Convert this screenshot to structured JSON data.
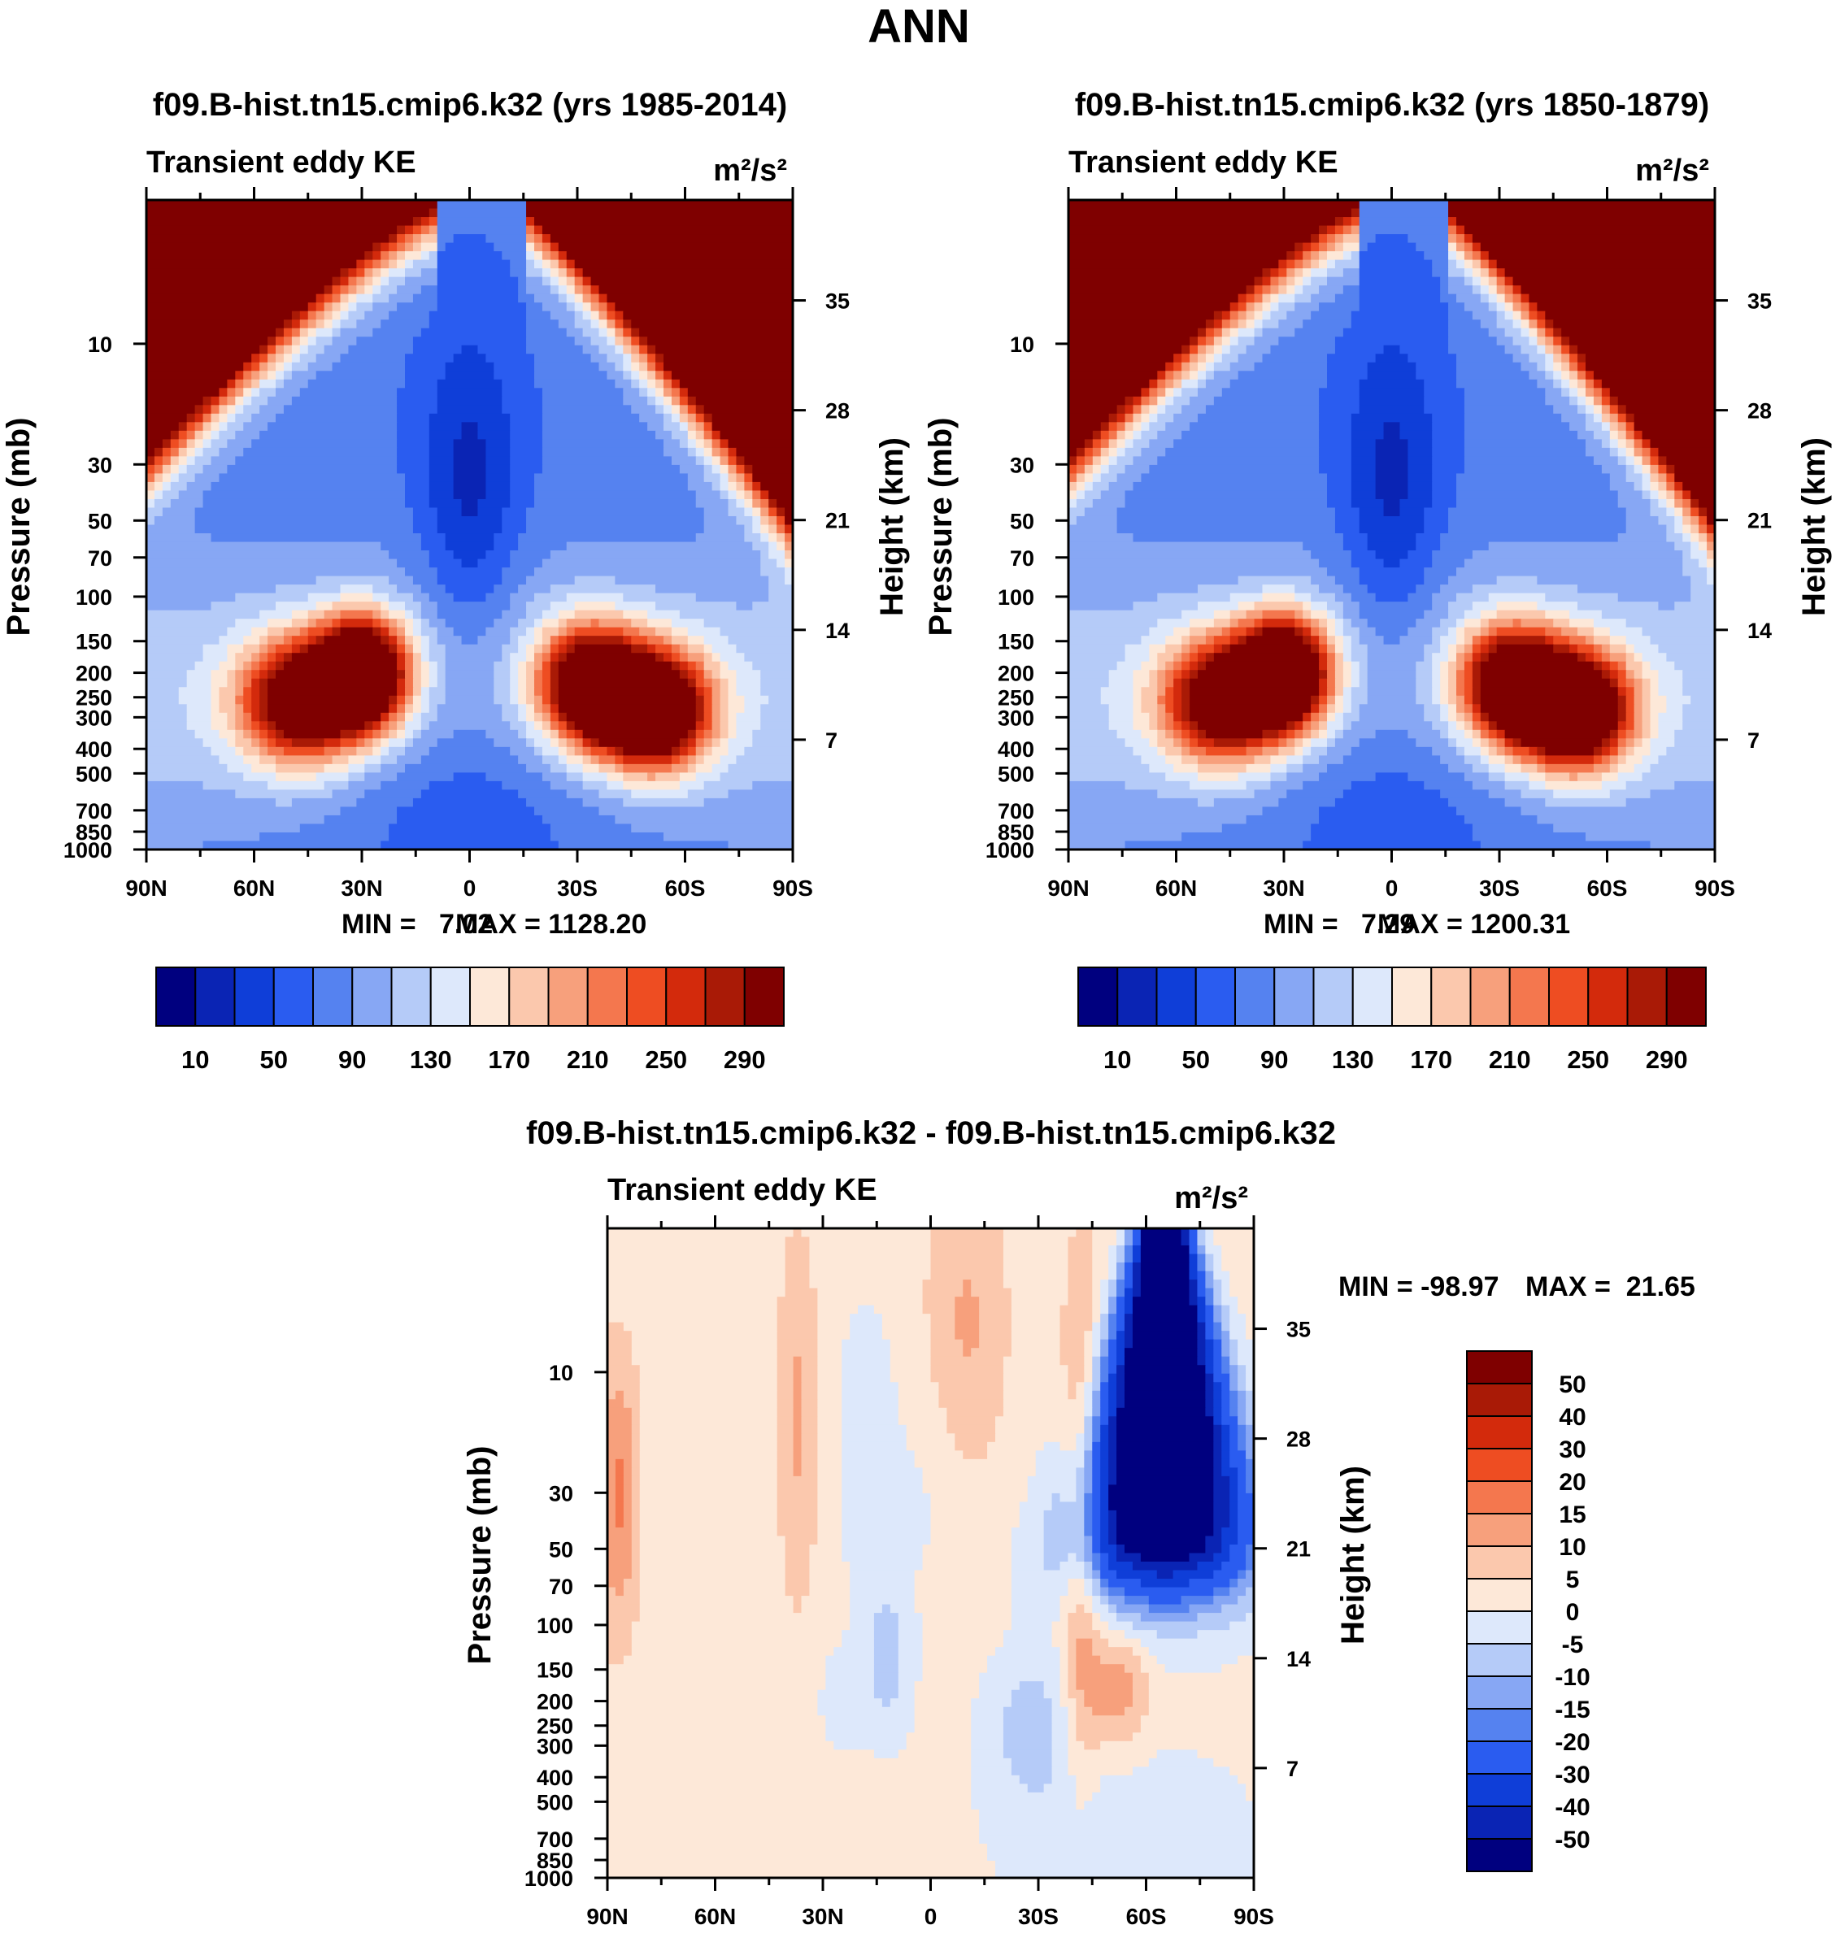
{
  "page_title": "ANN",
  "chart_data": [
    {
      "type": "heatmap",
      "id": "test",
      "title": "f09.B-hist.tn15.cmip6.k32 (yrs 1985-2014)",
      "left_label": "Transient eddy KE",
      "right_label": "m²/s²",
      "ylabel": "Pressure (mb)",
      "y2label": "Height (km)",
      "x_ticks": [
        "90N",
        "60N",
        "30N",
        "0",
        "30S",
        "60S",
        "90S"
      ],
      "y_ticks": [
        10,
        30,
        50,
        70,
        100,
        150,
        200,
        250,
        300,
        400,
        500,
        700,
        850,
        1000
      ],
      "y2_ticks": [
        35,
        28,
        21,
        14,
        7
      ],
      "min_label": "MIN =   7.02",
      "max_label": "MAX = 1128.20",
      "colorbar_levels": [
        10,
        30,
        50,
        70,
        90,
        110,
        130,
        150,
        170,
        190,
        210,
        230,
        250,
        270,
        290
      ],
      "colorbar_labels": [
        "10",
        "50",
        "90",
        "130",
        "170",
        "210",
        "250",
        "290"
      ],
      "features": [
        {
          "kind": "polar_upper_high",
          "lat": 90,
          "strength": 1.0
        },
        {
          "kind": "polar_upper_high",
          "lat": -90,
          "strength": 1.0
        },
        {
          "kind": "jet_core",
          "lat": 30,
          "pressure": 200,
          "value": 290
        },
        {
          "kind": "jet_core",
          "lat": -50,
          "pressure": 280,
          "value": 300
        },
        {
          "kind": "equatorial_min",
          "lat": 0,
          "pressure": 40,
          "value": 10
        }
      ]
    },
    {
      "type": "heatmap",
      "id": "control",
      "title": "f09.B-hist.tn15.cmip6.k32 (yrs 1850-1879)",
      "left_label": "Transient eddy KE",
      "right_label": "m²/s²",
      "ylabel": "Pressure (mb)",
      "y2label": "Height (km)",
      "x_ticks": [
        "90N",
        "60N",
        "30N",
        "0",
        "30S",
        "60S",
        "90S"
      ],
      "y_ticks": [
        10,
        30,
        50,
        70,
        100,
        150,
        200,
        250,
        300,
        400,
        500,
        700,
        850,
        1000
      ],
      "y2_ticks": [
        35,
        28,
        21,
        14,
        7
      ],
      "min_label": "MIN =   7.29",
      "max_label": "MAX = 1200.31",
      "colorbar_levels": [
        10,
        30,
        50,
        70,
        90,
        110,
        130,
        150,
        170,
        190,
        210,
        230,
        250,
        270,
        290
      ],
      "colorbar_labels": [
        "10",
        "50",
        "90",
        "130",
        "170",
        "210",
        "250",
        "290"
      ]
    },
    {
      "type": "heatmap",
      "id": "difference",
      "title": "f09.B-hist.tn15.cmip6.k32 - f09.B-hist.tn15.cmip6.k32",
      "left_label": "Transient eddy KE",
      "right_label": "m²/s²",
      "ylabel": "Pressure (mb)",
      "y2label": "Height (km)",
      "x_ticks": [
        "90N",
        "60N",
        "30N",
        "0",
        "30S",
        "60S",
        "90S"
      ],
      "y_ticks": [
        10,
        30,
        50,
        70,
        100,
        150,
        200,
        250,
        300,
        400,
        500,
        700,
        850,
        1000
      ],
      "y2_ticks": [
        35,
        28,
        21,
        14,
        7
      ],
      "min_label": "MIN = -98.97",
      "max_label": "MAX =  21.65",
      "colorbar_levels": [
        50,
        40,
        30,
        20,
        15,
        10,
        5,
        0,
        -5,
        -10,
        -15,
        -20,
        -30,
        -40,
        -50
      ],
      "colorbar_labels": [
        "50",
        "40",
        "30",
        "20",
        "15",
        "10",
        "5",
        "0",
        "-5",
        "-10",
        "-15",
        "-20",
        "-30",
        "-40",
        "-50"
      ],
      "features": [
        {
          "kind": "negative_plume",
          "lat": -65,
          "pressure": 5,
          "value": -90
        },
        {
          "kind": "positive_band",
          "lat": 88,
          "pressure": 30,
          "value": 20
        }
      ]
    }
  ],
  "palette": [
    "#00007f",
    "#0a24b4",
    "#0f3ed8",
    "#2a5cf0",
    "#5582f0",
    "#87a7f4",
    "#b5cbf8",
    "#dde8fb",
    "#fde8d8",
    "#fbc8ad",
    "#f7a07c",
    "#f4774e",
    "#ee4d22",
    "#d32a0c",
    "#a91a06",
    "#7f0000"
  ]
}
